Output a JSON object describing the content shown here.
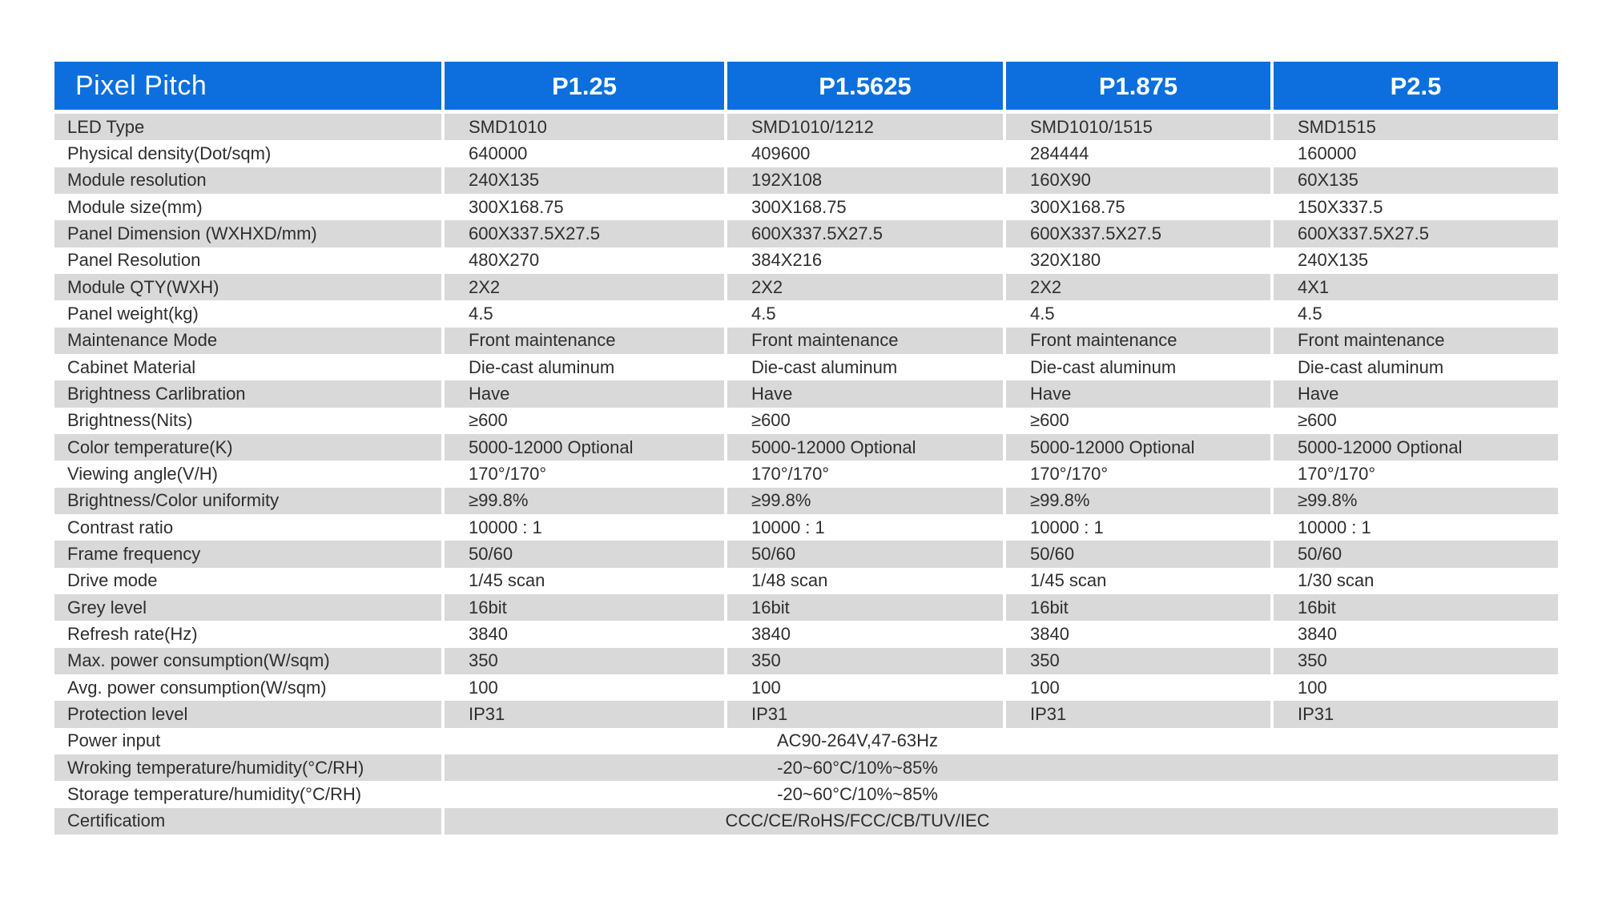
{
  "table": {
    "header": {
      "label": "Pixel Pitch",
      "columns": [
        "P1.25",
        "P1.5625",
        "P1.875",
        "P2.5"
      ]
    },
    "rows": [
      {
        "label": "LED Type",
        "values": [
          "SMD1010",
          "SMD1010/1212",
          "SMD1010/1515",
          "SMD1515"
        ]
      },
      {
        "label": "Physical density(Dot/sqm)",
        "values": [
          "640000",
          "409600",
          "284444",
          "160000"
        ]
      },
      {
        "label": "Module resolution",
        "values": [
          "240X135",
          "192X108",
          "160X90",
          "60X135"
        ]
      },
      {
        "label": "Module size(mm)",
        "values": [
          "300X168.75",
          "300X168.75",
          "300X168.75",
          "150X337.5"
        ]
      },
      {
        "label": "Panel Dimension (WXHXD/mm)",
        "values": [
          "600X337.5X27.5",
          "600X337.5X27.5",
          "600X337.5X27.5",
          "600X337.5X27.5"
        ]
      },
      {
        "label": "Panel Resolution",
        "values": [
          "480X270",
          "384X216",
          "320X180",
          "240X135"
        ]
      },
      {
        "label": "Module QTY(WXH)",
        "values": [
          "2X2",
          "2X2",
          "2X2",
          "4X1"
        ]
      },
      {
        "label": "Panel weight(kg)",
        "values": [
          "4.5",
          "4.5",
          "4.5",
          "4.5"
        ]
      },
      {
        "label": "Maintenance Mode",
        "values": [
          "Front maintenance",
          "Front maintenance",
          "Front maintenance",
          "Front maintenance"
        ]
      },
      {
        "label": "Cabinet Material",
        "values": [
          "Die-cast aluminum",
          "Die-cast aluminum",
          "Die-cast aluminum",
          "Die-cast aluminum"
        ]
      },
      {
        "label": "Brightness Carlibration",
        "values": [
          "Have",
          "Have",
          "Have",
          "Have"
        ]
      },
      {
        "label": "Brightness(Nits)",
        "values": [
          "≥600",
          "≥600",
          "≥600",
          "≥600"
        ]
      },
      {
        "label": "Color temperature(K)",
        "values": [
          "5000-12000 Optional",
          "5000-12000 Optional",
          "5000-12000 Optional",
          "5000-12000 Optional"
        ]
      },
      {
        "label": "Viewing angle(V/H)",
        "values": [
          "170°/170°",
          "170°/170°",
          "170°/170°",
          "170°/170°"
        ]
      },
      {
        "label": "Brightness/Color uniformity",
        "values": [
          "≥99.8%",
          "≥99.8%",
          "≥99.8%",
          "≥99.8%"
        ]
      },
      {
        "label": "Contrast ratio",
        "values": [
          "10000 : 1",
          "10000 : 1",
          "10000 : 1",
          "10000 : 1"
        ]
      },
      {
        "label": "Frame frequency",
        "values": [
          "50/60",
          "50/60",
          "50/60",
          "50/60"
        ]
      },
      {
        "label": "Drive mode",
        "values": [
          "1/45 scan",
          "1/48 scan",
          "1/45 scan",
          "1/30 scan"
        ]
      },
      {
        "label": "Grey level",
        "values": [
          "16bit",
          "16bit",
          "16bit",
          "16bit"
        ]
      },
      {
        "label": "Refresh rate(Hz)",
        "values": [
          "3840",
          "3840",
          "3840",
          "3840"
        ]
      },
      {
        "label": "Max. power consumption(W/sqm)",
        "values": [
          "350",
          "350",
          "350",
          "350"
        ]
      },
      {
        "label": "Avg. power consumption(W/sqm)",
        "values": [
          "100",
          "100",
          "100",
          "100"
        ]
      },
      {
        "label": "Protection level",
        "values": [
          "IP31",
          "IP31",
          "IP31",
          "IP31"
        ]
      }
    ],
    "merged_rows": [
      {
        "label": "Power input",
        "value": "AC90-264V,47-63Hz"
      },
      {
        "label": "Wroking temperature/humidity(°C/RH)",
        "value": "-20~60°C/10%~85%"
      },
      {
        "label": "Storage temperature/humidity(°C/RH)",
        "value": "-20~60°C/10%~85%"
      },
      {
        "label": "Certificatiom",
        "value": "CCC/CE/RoHS/FCC/CB/TUV/IEC"
      }
    ],
    "colors": {
      "header_bg": "#0c6fdd",
      "header_text": "#ffffff",
      "row_alt_bg": "#d9d9d9",
      "row_bg": "#ffffff",
      "text": "#2e2e2e"
    }
  }
}
